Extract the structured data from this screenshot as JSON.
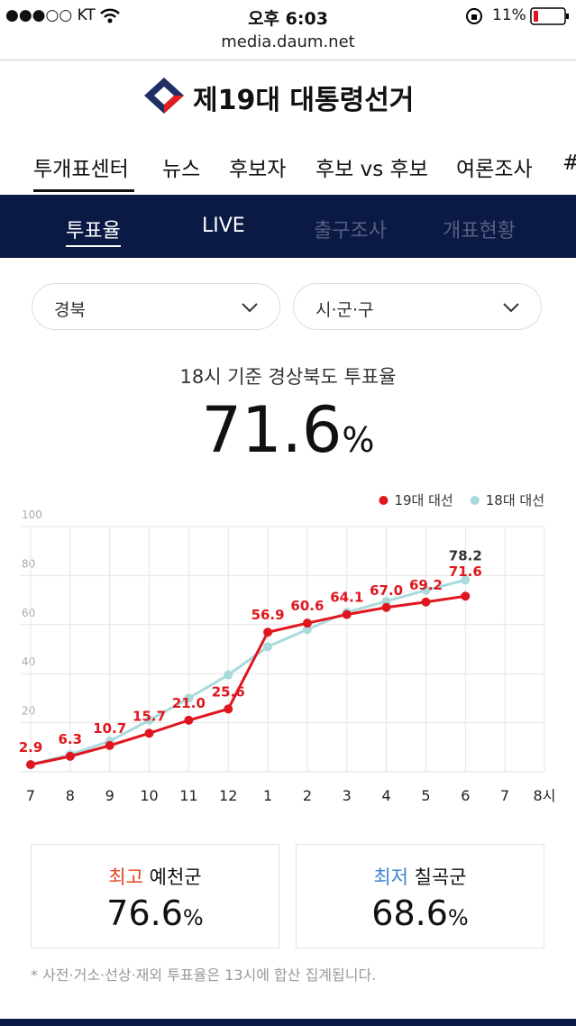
{
  "status_bar": {
    "carrier": "●●●○○ KT",
    "time": "오후 6:03",
    "battery": "11%"
  },
  "url": "media.daum.net",
  "header": {
    "title": "제19대 대통령선거"
  },
  "nav": {
    "tabs": [
      "투개표센터",
      "뉴스",
      "후보자",
      "후보 vs 후보",
      "여론조사",
      "#"
    ]
  },
  "subnav": {
    "tabs": [
      "투표율",
      "LIVE",
      "출구조사",
      "개표현황"
    ]
  },
  "filters": [
    "경북",
    "시·군·구"
  ],
  "headline": {
    "caption": "18시 기준 경상북도 투표율",
    "value": "71.6",
    "unit": "%"
  },
  "chart_data": {
    "type": "line",
    "categories": [
      "7",
      "8",
      "9",
      "10",
      "11",
      "12",
      "1",
      "2",
      "3",
      "4",
      "5",
      "6",
      "7",
      "8시"
    ],
    "ylim": [
      0,
      100
    ],
    "yticks": [
      20,
      40,
      60,
      80,
      100
    ],
    "grid": true,
    "legend": "top-right",
    "series": [
      {
        "name": "19대 대선",
        "color": "#e0161e",
        "values": [
          2.9,
          6.3,
          10.7,
          15.7,
          21.0,
          25.6,
          56.9,
          60.6,
          64.1,
          67.0,
          69.2,
          71.6,
          null,
          null
        ],
        "value_labels": [
          "2.9",
          "6.3",
          "10.7",
          "15.7",
          "21.0",
          "25.6",
          "56.9",
          "60.6",
          "64.1",
          "67.0",
          "69.2",
          "71.6",
          null,
          null
        ]
      },
      {
        "name": "18대 대선",
        "color": "#a9dadd",
        "values": [
          3.0,
          7.0,
          12.5,
          21.0,
          30.0,
          39.5,
          51.0,
          58.0,
          65.0,
          69.5,
          74.0,
          78.2,
          null,
          null
        ],
        "value_labels": [
          null,
          null,
          null,
          null,
          null,
          null,
          null,
          null,
          null,
          null,
          null,
          "78.2",
          null,
          null
        ]
      }
    ]
  },
  "stats": [
    {
      "label": "최고",
      "region": "예천군",
      "value": "76.6",
      "unit": "%"
    },
    {
      "label": "최저",
      "region": "칠곡군",
      "value": "68.6",
      "unit": "%"
    }
  ],
  "note": "* 사전·거소·선상·재외 투표율은 13시에 합산 집계됩니다."
}
